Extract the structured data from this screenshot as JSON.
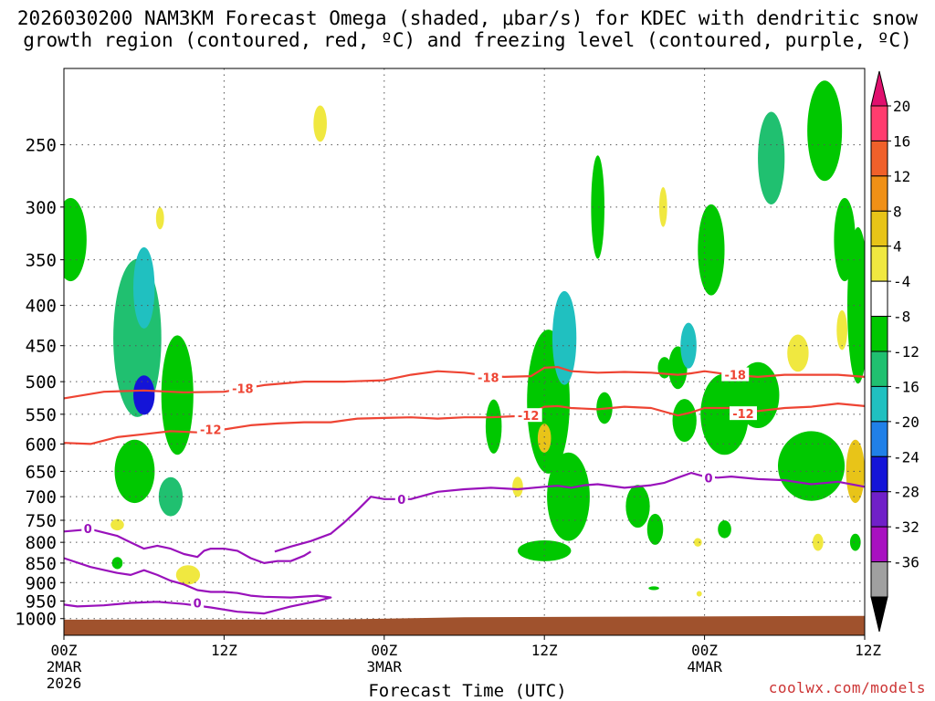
{
  "title_line1": "2026030200 NAM3KM Forecast Omega (shaded, μbar/s) for KDEC with dendritic snow",
  "title_line2": "growth region (contoured, red, ºC) and freezing level (contoured, purple, ºC)",
  "credit": "coolwx.com/models",
  "colors": {
    "dgz": "#ee4433",
    "freezing": "#9911bb",
    "ground": "#a0522d",
    "grid": "#555555"
  },
  "chart_data": {
    "type": "heatmap",
    "xlabel": "Forecast Time (UTC)",
    "x_ticks": [
      {
        "hour": 0,
        "label": "00Z",
        "date": "2MAR",
        "year": "2026"
      },
      {
        "hour": 12,
        "label": "12Z",
        "date": "",
        "year": ""
      },
      {
        "hour": 24,
        "label": "00Z",
        "date": "3MAR",
        "year": ""
      },
      {
        "hour": 36,
        "label": "12Z",
        "date": "",
        "year": ""
      },
      {
        "hour": 48,
        "label": "00Z",
        "date": "4MAR",
        "year": ""
      },
      {
        "hour": 60,
        "label": "12Z",
        "date": "",
        "year": ""
      }
    ],
    "xlim": [
      0,
      60
    ],
    "ylabel": "",
    "y_ticks": [
      250,
      300,
      350,
      400,
      450,
      500,
      550,
      600,
      650,
      700,
      750,
      800,
      850,
      900,
      950,
      1000
    ],
    "ylim": [
      1050,
      200
    ],
    "grid": true,
    "colorbar": {
      "labels": [
        "20",
        "16",
        "12",
        "8",
        "4",
        "-4",
        "-8",
        "-12",
        "-16",
        "-20",
        "-24",
        "-28",
        "-32",
        "-36"
      ],
      "colors": [
        "#ff3c6e",
        "#f0602a",
        "#f09016",
        "#e8c418",
        "#f0e840",
        "#ffffff",
        "#00c800",
        "#20c070",
        "#20c0c0",
        "#2080e8",
        "#1414d8",
        "#7020c8",
        "#a810c0",
        "#a0a0a0"
      ]
    },
    "omega_blobs": [
      {
        "t": 0.5,
        "p": 330,
        "dt": 1.2,
        "dp": 80,
        "v": -6
      },
      {
        "t": 5.5,
        "p": 440,
        "dt": 1.8,
        "dp": 200,
        "v": -10
      },
      {
        "t": 6.0,
        "p": 520,
        "dt": 0.8,
        "dp": 60,
        "v": -22
      },
      {
        "t": 6.0,
        "p": 380,
        "dt": 0.8,
        "dp": 90,
        "v": -14
      },
      {
        "t": 5.3,
        "p": 650,
        "dt": 1.5,
        "dp": 120,
        "v": -8
      },
      {
        "t": 8.5,
        "p": 520,
        "dt": 1.2,
        "dp": 180,
        "v": -6
      },
      {
        "t": 8.0,
        "p": 700,
        "dt": 0.9,
        "dp": 80,
        "v": -12
      },
      {
        "t": 4.0,
        "p": 850,
        "dt": 0.4,
        "dp": 30,
        "v": -6
      },
      {
        "t": 7.2,
        "p": 310,
        "dt": 0.3,
        "dp": 20,
        "v": 5
      },
      {
        "t": 4.0,
        "p": 760,
        "dt": 0.5,
        "dp": 25,
        "v": 6
      },
      {
        "t": 9.3,
        "p": 880,
        "dt": 0.9,
        "dp": 50,
        "v": 6
      },
      {
        "t": 19.2,
        "p": 235,
        "dt": 0.5,
        "dp": 25,
        "v": 6
      },
      {
        "t": 36.3,
        "p": 530,
        "dt": 1.6,
        "dp": 220,
        "v": -7
      },
      {
        "t": 37.5,
        "p": 440,
        "dt": 0.9,
        "dp": 120,
        "v": -14
      },
      {
        "t": 37.8,
        "p": 700,
        "dt": 1.6,
        "dp": 180,
        "v": -9
      },
      {
        "t": 36.0,
        "p": 820,
        "dt": 2.0,
        "dp": 50,
        "v": -8
      },
      {
        "t": 40.0,
        "p": 300,
        "dt": 0.5,
        "dp": 90,
        "v": -7
      },
      {
        "t": 40.5,
        "p": 540,
        "dt": 0.6,
        "dp": 50,
        "v": -6
      },
      {
        "t": 32.2,
        "p": 570,
        "dt": 0.6,
        "dp": 90,
        "v": -6
      },
      {
        "t": 36.0,
        "p": 590,
        "dt": 0.5,
        "dp": 50,
        "v": 8
      },
      {
        "t": 34.0,
        "p": 680,
        "dt": 0.4,
        "dp": 40,
        "v": 5
      },
      {
        "t": 43.0,
        "p": 720,
        "dt": 0.9,
        "dp": 90,
        "v": -9
      },
      {
        "t": 44.3,
        "p": 770,
        "dt": 0.6,
        "dp": 70,
        "v": -6
      },
      {
        "t": 45.0,
        "p": 480,
        "dt": 0.5,
        "dp": 30,
        "v": -6
      },
      {
        "t": 46.5,
        "p": 560,
        "dt": 0.9,
        "dp": 70,
        "v": -6
      },
      {
        "t": 46.0,
        "p": 480,
        "dt": 0.7,
        "dp": 60,
        "v": -6
      },
      {
        "t": 46.8,
        "p": 450,
        "dt": 0.6,
        "dp": 60,
        "v": -14
      },
      {
        "t": 47.5,
        "p": 800,
        "dt": 0.3,
        "dp": 20,
        "v": 6
      },
      {
        "t": 48.5,
        "p": 340,
        "dt": 1.0,
        "dp": 90,
        "v": -7
      },
      {
        "t": 49.5,
        "p": 550,
        "dt": 1.8,
        "dp": 130,
        "v": -8
      },
      {
        "t": 49.5,
        "p": 770,
        "dt": 0.5,
        "dp": 40,
        "v": -6
      },
      {
        "t": 52.0,
        "p": 520,
        "dt": 1.6,
        "dp": 100,
        "v": -8
      },
      {
        "t": 53.0,
        "p": 260,
        "dt": 1.0,
        "dp": 70,
        "v": -10
      },
      {
        "t": 57.0,
        "p": 240,
        "dt": 1.3,
        "dp": 70,
        "v": -8
      },
      {
        "t": 58.5,
        "p": 330,
        "dt": 0.8,
        "dp": 80,
        "v": -9
      },
      {
        "t": 59.5,
        "p": 400,
        "dt": 0.8,
        "dp": 180,
        "v": -7
      },
      {
        "t": 56.0,
        "p": 640,
        "dt": 2.5,
        "dp": 130,
        "v": -8
      },
      {
        "t": 55.0,
        "p": 460,
        "dt": 0.8,
        "dp": 50,
        "v": 6
      },
      {
        "t": 58.3,
        "p": 430,
        "dt": 0.4,
        "dp": 50,
        "v": 6
      },
      {
        "t": 59.3,
        "p": 650,
        "dt": 0.7,
        "dp": 120,
        "v": 9
      },
      {
        "t": 56.5,
        "p": 800,
        "dt": 0.4,
        "dp": 40,
        "v": 6
      },
      {
        "t": 59.3,
        "p": 800,
        "dt": 0.4,
        "dp": 40,
        "v": -6
      },
      {
        "t": 44.9,
        "p": 300,
        "dt": 0.3,
        "dp": 35,
        "v": 6
      },
      {
        "t": 47.6,
        "p": 930,
        "dt": 0.2,
        "dp": 15,
        "v": 6
      },
      {
        "t": 44.2,
        "p": 915,
        "dt": 0.4,
        "dp": 10,
        "v": -6
      }
    ],
    "dgz_contours": [
      {
        "label": "-18",
        "label_points": [
          [
            13.4,
            510
          ],
          [
            31.8,
            494
          ],
          [
            50.3,
            490
          ]
        ],
        "points": [
          [
            0,
            525
          ],
          [
            3,
            515
          ],
          [
            6,
            513
          ],
          [
            9,
            516
          ],
          [
            12,
            515
          ],
          [
            15,
            505
          ],
          [
            18,
            500
          ],
          [
            21,
            500
          ],
          [
            24,
            498
          ],
          [
            26,
            490
          ],
          [
            28,
            485
          ],
          [
            30,
            487
          ],
          [
            32,
            492
          ],
          [
            33,
            493
          ],
          [
            35,
            492
          ],
          [
            36,
            480
          ],
          [
            37,
            479
          ],
          [
            38,
            485
          ],
          [
            40,
            487
          ],
          [
            42,
            486
          ],
          [
            44,
            487
          ],
          [
            46,
            490
          ],
          [
            47,
            488
          ],
          [
            48,
            485
          ],
          [
            50,
            490
          ],
          [
            52,
            493
          ],
          [
            54,
            490
          ],
          [
            56,
            490
          ],
          [
            58,
            490
          ],
          [
            60,
            493
          ]
        ]
      },
      {
        "label": "-12",
        "label_points": [
          [
            11.0,
            575
          ],
          [
            34.8,
            552
          ],
          [
            50.9,
            549
          ]
        ],
        "points": [
          [
            0,
            598
          ],
          [
            2,
            600
          ],
          [
            4,
            588
          ],
          [
            6,
            583
          ],
          [
            8,
            578
          ],
          [
            10,
            580
          ],
          [
            12,
            575
          ],
          [
            14,
            568
          ],
          [
            16,
            565
          ],
          [
            18,
            563
          ],
          [
            20,
            563
          ],
          [
            22,
            557
          ],
          [
            24,
            556
          ],
          [
            26,
            555
          ],
          [
            28,
            557
          ],
          [
            30,
            555
          ],
          [
            32,
            555
          ],
          [
            34,
            553
          ],
          [
            35,
            548
          ],
          [
            36,
            538
          ],
          [
            37,
            537
          ],
          [
            38,
            540
          ],
          [
            40,
            542
          ],
          [
            42,
            538
          ],
          [
            44,
            540
          ],
          [
            46,
            552
          ],
          [
            47,
            547
          ],
          [
            48,
            540
          ],
          [
            50,
            540
          ],
          [
            52,
            545
          ],
          [
            54,
            540
          ],
          [
            56,
            538
          ],
          [
            58,
            533
          ],
          [
            60,
            537
          ]
        ]
      }
    ],
    "freezing_contours": [
      {
        "label": "0",
        "label_points": [
          [
            25.3,
            705
          ],
          [
            48.3,
            662
          ]
        ],
        "points": [
          [
            15.8,
            822
          ],
          [
            17,
            810
          ],
          [
            18.5,
            797
          ],
          [
            20,
            780
          ],
          [
            21,
            755
          ],
          [
            22,
            728
          ],
          [
            23,
            700
          ],
          [
            24,
            705
          ],
          [
            25,
            705
          ],
          [
            26,
            705
          ],
          [
            28,
            690
          ],
          [
            30,
            685
          ],
          [
            32,
            682
          ],
          [
            34,
            685
          ],
          [
            36,
            680
          ],
          [
            37,
            678
          ],
          [
            38,
            682
          ],
          [
            39,
            677
          ],
          [
            40,
            675
          ],
          [
            42,
            682
          ],
          [
            44,
            677
          ],
          [
            45,
            672
          ],
          [
            46,
            662
          ],
          [
            47,
            653
          ],
          [
            48,
            660
          ],
          [
            49,
            662
          ],
          [
            50,
            660
          ],
          [
            52,
            665
          ],
          [
            54,
            667
          ],
          [
            56,
            675
          ],
          [
            58,
            670
          ],
          [
            60,
            680
          ]
        ]
      },
      {
        "label": "0",
        "label_points": [
          [
            1.8,
            768
          ]
        ],
        "points": [
          [
            0,
            775
          ],
          [
            2,
            770
          ],
          [
            4,
            785
          ],
          [
            5,
            800
          ],
          [
            6,
            815
          ],
          [
            7,
            808
          ],
          [
            8,
            815
          ],
          [
            9,
            828
          ],
          [
            10,
            835
          ],
          [
            10.5,
            820
          ],
          [
            11,
            815
          ],
          [
            12,
            815
          ],
          [
            13,
            820
          ],
          [
            14,
            838
          ],
          [
            15,
            850
          ],
          [
            16,
            845
          ],
          [
            17,
            845
          ],
          [
            18,
            832
          ],
          [
            18.5,
            822
          ]
        ]
      },
      {
        "label": "0",
        "label_points": [
          [
            10.0,
            955
          ]
        ],
        "points": [
          [
            0,
            838
          ],
          [
            2,
            860
          ],
          [
            4,
            875
          ],
          [
            5,
            880
          ],
          [
            6,
            868
          ],
          [
            7,
            880
          ],
          [
            8,
            895
          ],
          [
            9,
            905
          ],
          [
            10,
            920
          ],
          [
            11,
            925
          ],
          [
            12,
            925
          ],
          [
            13,
            928
          ],
          [
            14,
            935
          ],
          [
            15,
            938
          ],
          [
            17,
            940
          ],
          [
            19,
            935
          ],
          [
            20,
            940
          ],
          [
            19,
            950
          ],
          [
            17,
            965
          ],
          [
            16,
            975
          ],
          [
            15,
            985
          ],
          [
            13,
            980
          ],
          [
            11,
            968
          ],
          [
            9,
            958
          ],
          [
            7,
            952
          ],
          [
            5,
            955
          ],
          [
            3,
            962
          ],
          [
            1,
            965
          ],
          [
            0,
            960
          ]
        ]
      }
    ],
    "terrain_top": [
      [
        0,
        1003
      ],
      [
        20,
        1003
      ],
      [
        30,
        996
      ],
      [
        60,
        992
      ]
    ]
  }
}
